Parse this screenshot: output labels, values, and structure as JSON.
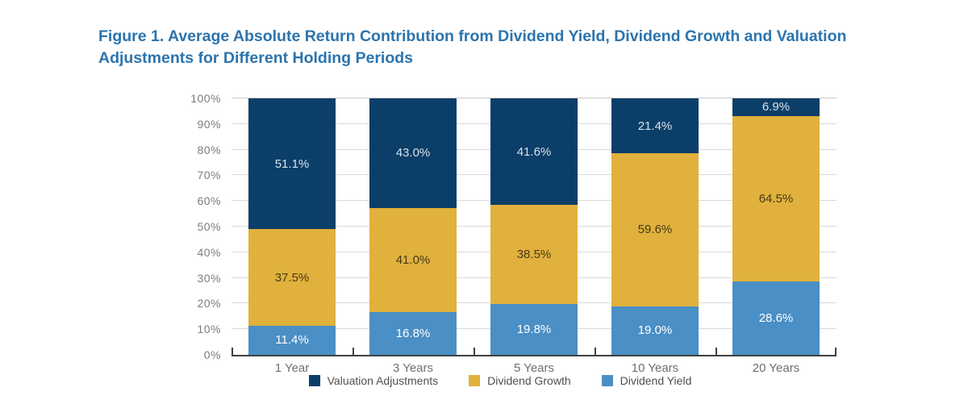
{
  "figure": {
    "title_line1": "Figure 1. Average Absolute Return Contribution from Dividend Yield, Dividend Growth and Valuation",
    "title_line2": "Adjustments for Different Holding Periods",
    "title_color": "#2C74AD"
  },
  "chart_data": {
    "type": "bar",
    "stacked": true,
    "title": "Figure 1. Average Absolute Return Contribution from Dividend Yield, Dividend Growth and Valuation Adjustments for Different Holding Periods",
    "categories": [
      "1 Year",
      "3 Years",
      "5 Years",
      "10 Years",
      "20 Years"
    ],
    "series": [
      {
        "name": "Valuation Adjustments",
        "color": "#0B3E68",
        "label_color": "#D9E2EA",
        "values": [
          51.1,
          43.0,
          41.6,
          21.4,
          6.9
        ],
        "labels": [
          "51.1%",
          "43.0%",
          "41.6%",
          "21.4%",
          "6.9%"
        ]
      },
      {
        "name": "Dividend Growth",
        "color": "#E0B13C",
        "label_color": "#473A19",
        "values": [
          37.5,
          41.0,
          38.5,
          59.6,
          64.5
        ],
        "labels": [
          "37.5%",
          "41.0%",
          "38.5%",
          "59.6%",
          "64.5%"
        ]
      },
      {
        "name": "Dividend Yield",
        "color": "#4A8FC5",
        "label_color": "#FFFFFF",
        "values": [
          11.4,
          16.8,
          19.8,
          19.0,
          28.6
        ],
        "labels": [
          "11.4%",
          "16.8%",
          "19.8%",
          "19.0%",
          "28.6%"
        ]
      }
    ],
    "xlabel": "",
    "ylabel": "",
    "ylim": [
      0,
      100
    ],
    "y_axis_ticks": [
      "0%",
      "10%",
      "20%",
      "30%",
      "40%",
      "50%",
      "60%",
      "70%",
      "80%",
      "90%",
      "100%"
    ],
    "grid": true,
    "legend_position": "bottom",
    "axis_color": "#404040",
    "gridline_color": "#D9D9D9",
    "tick_label_color": "#7C7C7C"
  }
}
